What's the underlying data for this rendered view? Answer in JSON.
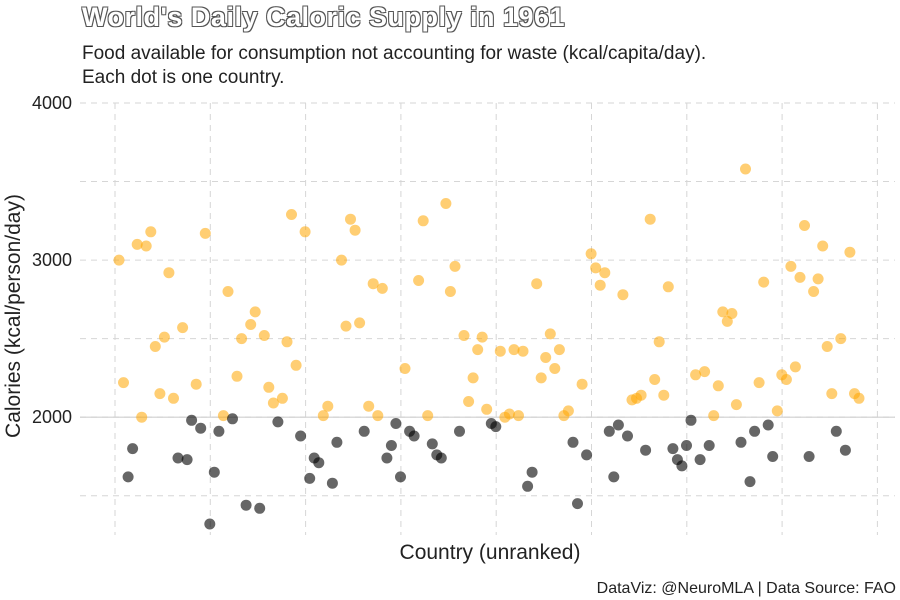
{
  "title": "World's Daily Caloric Supply in 1961",
  "subtitle": "Food available for consumption not accounting for waste (kcal/capita/day).\nEach dot is one country.",
  "caption": "DataViz: @NeuroMLA | Data Source: FAO",
  "chart_data": {
    "type": "scatter",
    "xlabel": "Country (unranked)",
    "ylabel": "Calories (kcal/person/day)",
    "ylim": [
      1250,
      4000
    ],
    "yticks": [
      2000,
      3000,
      4000
    ],
    "grid": true,
    "reference_line": 2000,
    "colors": {
      "above": "#FFA500",
      "below": "#000000"
    },
    "values": [
      3000,
      2220,
      1620,
      1800,
      3100,
      2000,
      3090,
      3180,
      2450,
      2150,
      2510,
      2920,
      2120,
      1740,
      2570,
      1730,
      1980,
      2210,
      1930,
      3170,
      1320,
      1650,
      1910,
      2010,
      2800,
      1990,
      2260,
      2500,
      1440,
      2590,
      2670,
      1420,
      2520,
      2190,
      2090,
      1970,
      2120,
      2480,
      3290,
      2330,
      1880,
      3180,
      1610,
      1740,
      1710,
      2010,
      2070,
      1580,
      1840,
      3000,
      2580,
      3260,
      3190,
      2600,
      1910,
      2070,
      2850,
      2010,
      2820,
      1740,
      1820,
      1960,
      1620,
      2310,
      1910,
      1880,
      2870,
      3250,
      2010,
      1830,
      1760,
      1740,
      3360,
      2800,
      2960,
      1910,
      2520,
      2100,
      2250,
      2430,
      2510,
      2050,
      1960,
      1940,
      2420,
      2000,
      2020,
      2430,
      2010,
      2420,
      1560,
      1650,
      2850,
      2250,
      2380,
      2530,
      2310,
      2430,
      2010,
      2040,
      1840,
      1450,
      2210,
      1760,
      3040,
      2950,
      2840,
      2920,
      1910,
      1620,
      1950,
      2780,
      1880,
      2110,
      2120,
      2140,
      1790,
      3260,
      2240,
      2480,
      2140,
      2830,
      1800,
      1730,
      1690,
      1820,
      1980,
      2270,
      1730,
      2290,
      1820,
      2010,
      2200,
      2670,
      2610,
      2660,
      2080,
      1840,
      3580,
      1590,
      1910,
      2220,
      2860,
      1950,
      1750,
      2040,
      2270,
      2240,
      2960,
      2320,
      2890,
      3220,
      1750,
      2800,
      2880,
      3090,
      2450,
      2150,
      1910,
      2500,
      1790,
      3050,
      2150,
      2120
    ]
  }
}
